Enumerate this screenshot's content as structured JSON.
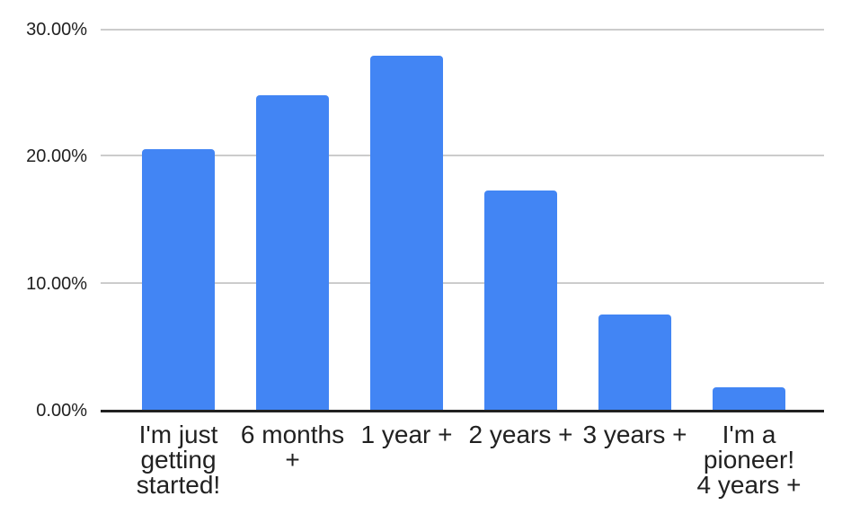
{
  "chart_data": {
    "type": "bar",
    "title": "",
    "xlabel": "",
    "ylabel": "",
    "categories": [
      "I'm just getting started!",
      "6 months +",
      "1 year +",
      "2 years +",
      "3 years +",
      "I'm a pioneer! 4 years +"
    ],
    "category_label_lines": [
      [
        "I'm just",
        "getting",
        "started!"
      ],
      [
        "6 months",
        "+"
      ],
      [
        "1 year +"
      ],
      [
        "2 years +"
      ],
      [
        "3 years +"
      ],
      [
        "I'm a",
        "pioneer!",
        "4 years +"
      ]
    ],
    "values": [
      20.5,
      24.8,
      27.9,
      17.3,
      7.5,
      1.75
    ],
    "value_unit": "%",
    "ylim": [
      0,
      30
    ],
    "y_ticks": [
      {
        "label": "30.00%",
        "value": 30
      },
      {
        "label": "20.00%",
        "value": 20
      },
      {
        "label": "10.00%",
        "value": 10
      },
      {
        "label": "0.00%",
        "value": 0
      }
    ],
    "grid": true,
    "legend": "none",
    "colors": {
      "bar": "#4285f4",
      "axis": "#212121",
      "grid": "#cccccc",
      "text": "#212121",
      "background": "#ffffff"
    }
  }
}
